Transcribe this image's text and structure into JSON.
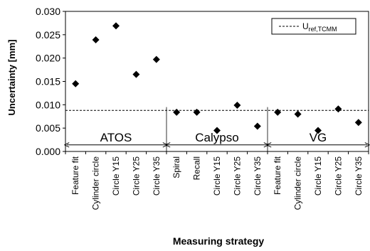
{
  "chart_data": {
    "type": "scatter",
    "ylabel": "Uncertainty [mm]",
    "xlabel": "Measuring strategy",
    "ylim": [
      0,
      0.03
    ],
    "yticks": [
      "0.000",
      "0.005",
      "0.010",
      "0.015",
      "0.020",
      "0.025",
      "0.030"
    ],
    "grid": false,
    "legend_position": "top-right",
    "categories": [
      "Feature fit",
      "Cylinder circle",
      "Circle Y15",
      "Circle Y25",
      "Circle Y35",
      "Spiral",
      "Recall",
      "Circle Y15",
      "Circle Y25",
      "Circle Y35",
      "Feature fit",
      "Cylinder circle",
      "Circle Y15",
      "Circle Y25",
      "Circle Y35"
    ],
    "series": [
      {
        "values": [
          0.0145,
          0.0239,
          0.0269,
          0.0165,
          0.0197,
          0.0084,
          0.0084,
          0.0045,
          0.0099,
          0.0054,
          0.0084,
          0.008,
          0.0045,
          0.0091,
          0.0062
        ],
        "color": "#000000"
      }
    ],
    "reference_line": {
      "value": 0.0088,
      "label_main": "U",
      "label_sub": "ref,TCMM",
      "style": "dashed"
    },
    "groups": [
      {
        "label": "ATOS",
        "start": 0,
        "end": 4
      },
      {
        "label": "Calypso",
        "start": 5,
        "end": 9
      },
      {
        "label": "VG",
        "start": 10,
        "end": 14
      }
    ]
  }
}
